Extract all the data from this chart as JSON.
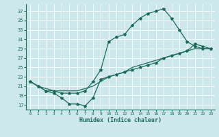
{
  "xlabel": "Humidex (Indice chaleur)",
  "background_color": "#cce8ec",
  "grid_color": "#ffffff",
  "line_color": "#1a6b5a",
  "xlim": [
    -0.5,
    23.5
  ],
  "ylim": [
    16,
    38.5
  ],
  "xticks": [
    0,
    1,
    2,
    3,
    4,
    5,
    6,
    7,
    8,
    9,
    10,
    11,
    12,
    13,
    14,
    15,
    16,
    17,
    18,
    19,
    20,
    21,
    22,
    23
  ],
  "yticks": [
    17,
    19,
    21,
    23,
    25,
    27,
    29,
    31,
    33,
    35,
    37
  ],
  "series1_x": [
    0,
    1,
    2,
    3,
    4,
    5,
    6,
    7,
    8,
    9,
    10,
    11,
    12,
    13,
    14,
    15,
    16,
    17,
    18,
    19,
    20,
    21,
    22,
    23
  ],
  "series1_y": [
    22,
    21,
    20,
    19.5,
    18.5,
    17.2,
    17.2,
    16.8,
    18.5,
    22.5,
    23,
    23.5,
    24,
    24.5,
    25,
    25.5,
    26,
    27,
    27.5,
    28,
    28.5,
    30,
    29.5,
    29
  ],
  "series2_x": [
    0,
    1,
    2,
    3,
    4,
    5,
    6,
    7,
    8,
    9,
    10,
    11,
    12,
    13,
    14,
    15,
    16,
    17,
    18,
    19,
    20,
    21,
    22,
    23
  ],
  "series2_y": [
    22,
    21,
    20,
    20,
    19.5,
    19.5,
    19.5,
    20,
    22,
    24.5,
    30.5,
    31.5,
    32,
    34,
    35.5,
    36.5,
    37,
    37.5,
    35.5,
    33,
    30.5,
    29.5,
    29,
    29
  ],
  "series3_x": [
    0,
    1,
    2,
    3,
    4,
    5,
    6,
    7,
    8,
    9,
    10,
    11,
    12,
    13,
    14,
    15,
    16,
    17,
    18,
    19,
    20,
    21,
    22,
    23
  ],
  "series3_y": [
    22,
    21,
    20.5,
    20,
    20,
    20,
    20,
    20.5,
    21,
    22,
    23,
    23.5,
    24,
    25,
    25.5,
    26,
    26.5,
    27,
    27.5,
    28,
    28.5,
    29,
    29,
    29
  ]
}
